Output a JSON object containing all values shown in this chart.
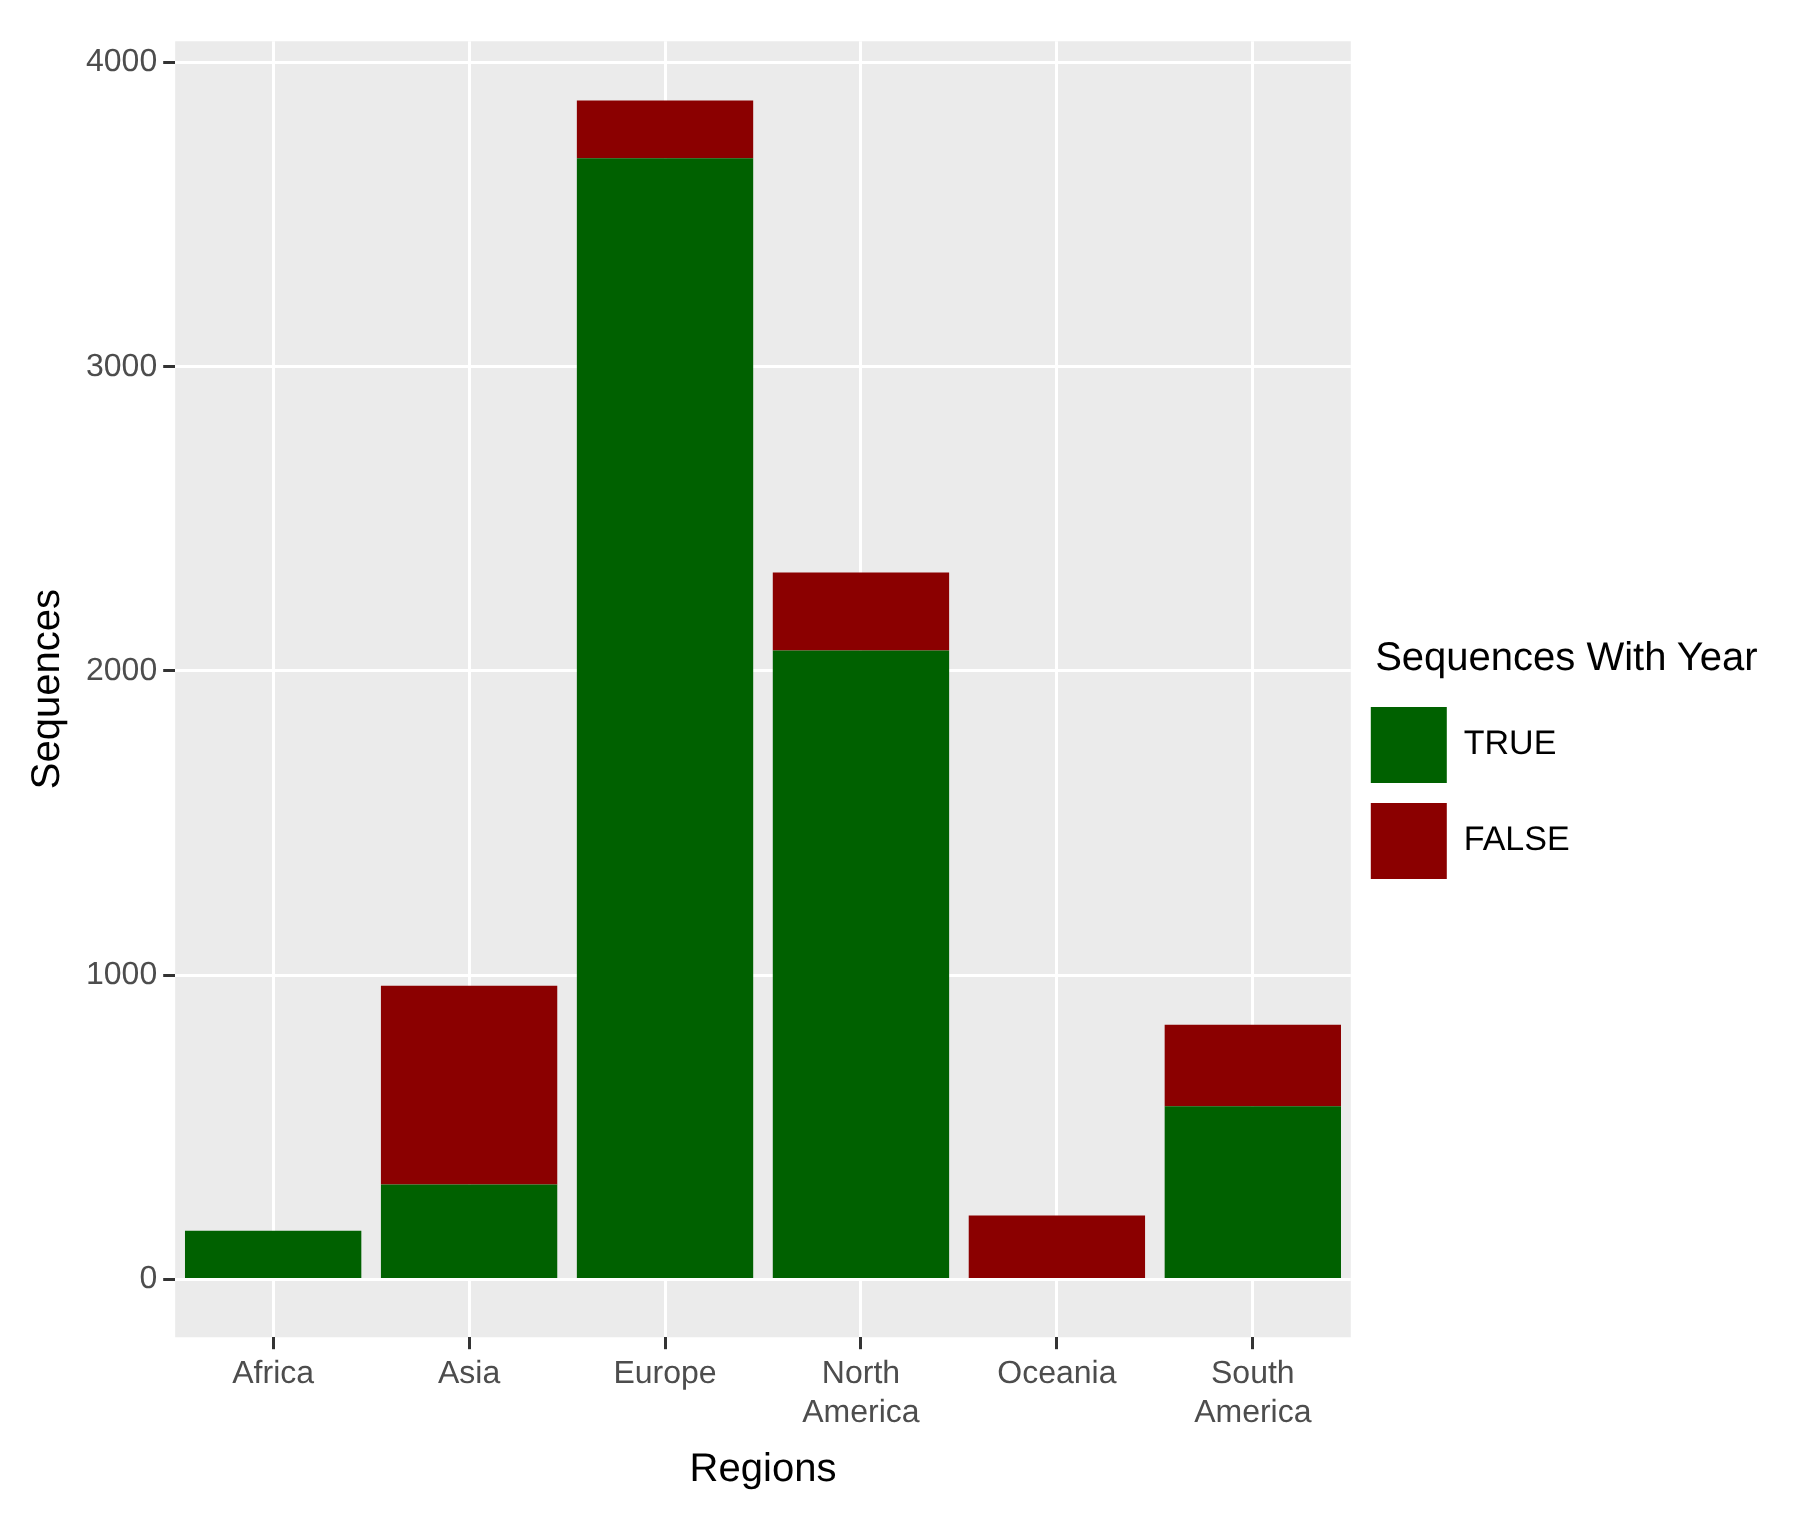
{
  "chart_data": {
    "type": "bar",
    "xlabel": "Regions",
    "ylabel": "Sequences",
    "legend_title": "Sequences With Year",
    "stacked": true,
    "categories": [
      "Africa",
      "Asia",
      "Europe",
      "North America",
      "Oceania",
      "South America"
    ],
    "series": [
      {
        "name": "TRUE",
        "color": "#006100",
        "values": [
          160,
          312,
          3685,
          2067,
          0,
          569
        ]
      },
      {
        "name": "FALSE",
        "color": "#8b0000",
        "values": [
          0,
          653,
          190,
          257,
          210,
          268
        ]
      }
    ],
    "ylim": [
      -190,
      4070
    ],
    "yticks": [
      0,
      1000,
      2000,
      3000,
      4000
    ],
    "grid": true,
    "legend": "right"
  }
}
